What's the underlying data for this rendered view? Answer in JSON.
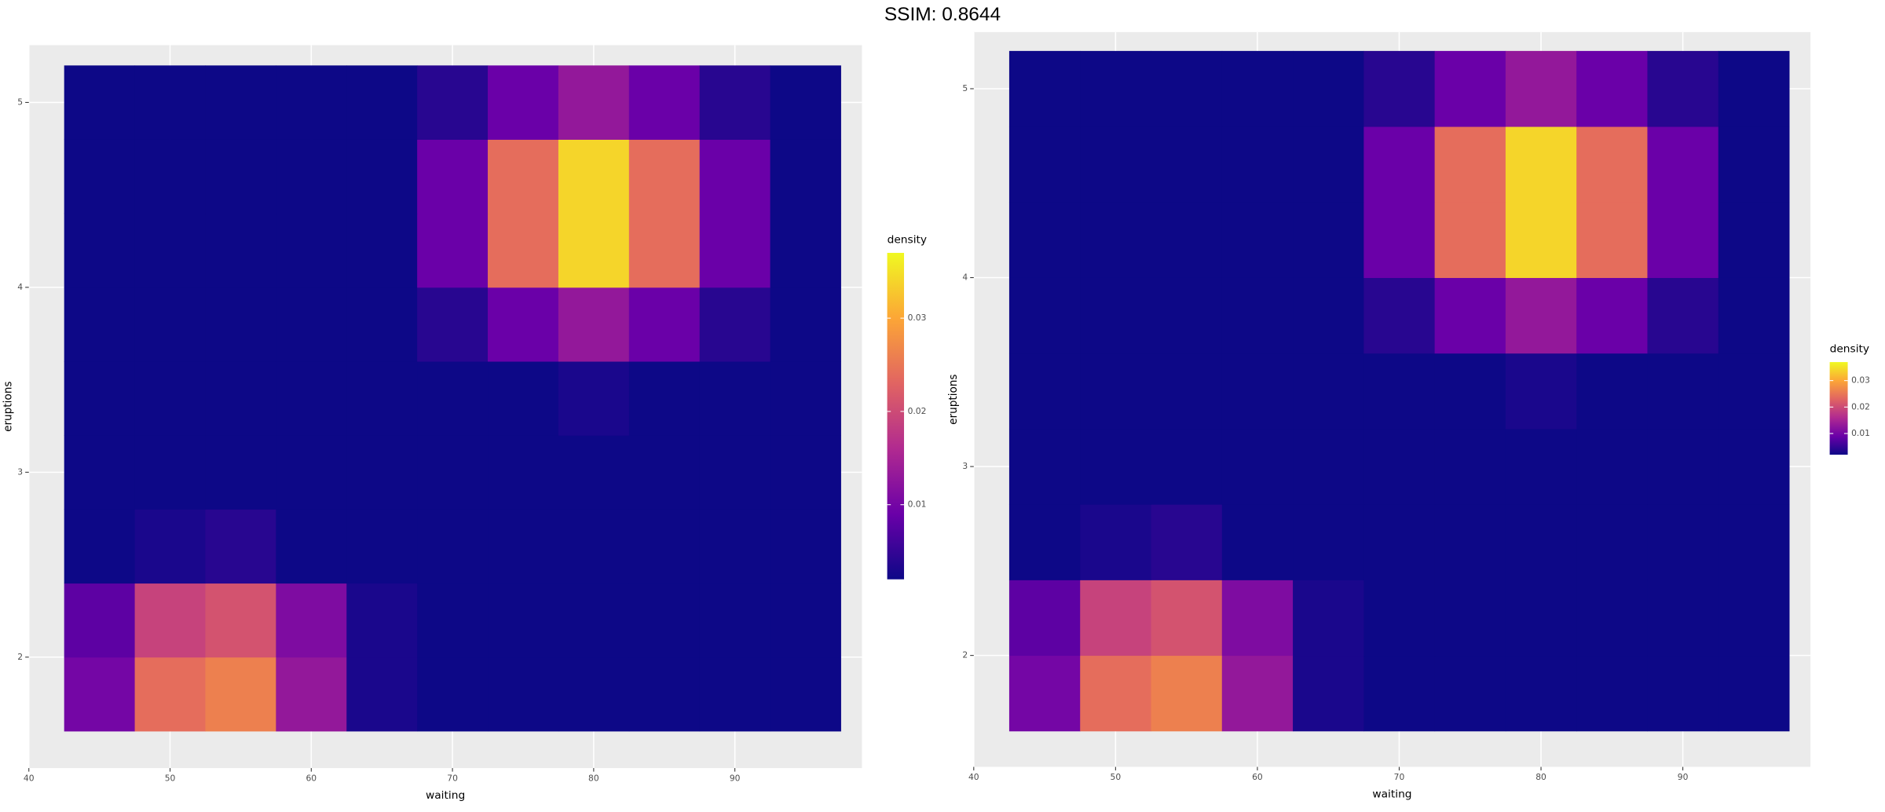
{
  "title": "SSIM: 0.8644",
  "chart_data": [
    {
      "type": "heatmap",
      "x_label": "waiting",
      "y_label": "eruptions",
      "legend_title": "density",
      "x": [
        45,
        50,
        55,
        60,
        65,
        70,
        75,
        80,
        85,
        90,
        95
      ],
      "y": [
        1.8,
        2.2,
        2.6,
        3.0,
        3.4,
        3.8,
        4.2,
        4.6,
        5.0
      ],
      "z": [
        [
          0.01,
          0.024,
          0.026,
          0.013,
          0.003,
          0.001,
          0.001,
          0.001,
          0.001,
          0.001,
          0.001
        ],
        [
          0.008,
          0.019,
          0.021,
          0.011,
          0.003,
          0.001,
          0.001,
          0.001,
          0.001,
          0.001,
          0.001
        ],
        [
          0.002,
          0.003,
          0.004,
          0.002,
          0.001,
          0.001,
          0.001,
          0.001,
          0.001,
          0.001,
          0.001
        ],
        [
          0.001,
          0.001,
          0.001,
          0.001,
          0.001,
          0.001,
          0.001,
          0.001,
          0.001,
          0.001,
          0.001
        ],
        [
          0.001,
          0.001,
          0.001,
          0.001,
          0.001,
          0.001,
          0.002,
          0.003,
          0.002,
          0.001,
          0.001
        ],
        [
          0.001,
          0.001,
          0.001,
          0.001,
          0.002,
          0.004,
          0.009,
          0.013,
          0.009,
          0.004,
          0.002
        ],
        [
          0.001,
          0.001,
          0.001,
          0.001,
          0.002,
          0.009,
          0.024,
          0.034,
          0.024,
          0.009,
          0.002
        ],
        [
          0.001,
          0.001,
          0.001,
          0.001,
          0.002,
          0.009,
          0.024,
          0.034,
          0.024,
          0.009,
          0.002
        ],
        [
          0.001,
          0.001,
          0.001,
          0.001,
          0.002,
          0.004,
          0.009,
          0.013,
          0.009,
          0.004,
          0.002
        ]
      ],
      "xlim": [
        40,
        99
      ],
      "ylim": [
        1.4,
        5.31
      ],
      "xticks": [
        40,
        50,
        60,
        70,
        80,
        90
      ],
      "yticks": [
        2,
        3,
        4,
        5
      ],
      "zlim": [
        0.002,
        0.037
      ],
      "zticks": [
        0.01,
        0.02,
        0.03
      ],
      "colors": [
        "#0d0887",
        "#6a00a8",
        "#b12a90",
        "#e16462",
        "#fca636",
        "#f0f921"
      ],
      "grid": true
    },
    {
      "type": "heatmap",
      "x_label": "waiting",
      "y_label": "eruptions",
      "legend_title": "density",
      "x": [
        45,
        50,
        55,
        60,
        65,
        70,
        75,
        80,
        85,
        90,
        95
      ],
      "y": [
        1.8,
        2.2,
        2.6,
        3.0,
        3.4,
        3.8,
        4.2,
        4.6,
        5.0
      ],
      "z": [
        [
          0.01,
          0.024,
          0.026,
          0.013,
          0.003,
          0.001,
          0.001,
          0.001,
          0.001,
          0.001,
          0.001
        ],
        [
          0.008,
          0.019,
          0.021,
          0.011,
          0.003,
          0.001,
          0.001,
          0.001,
          0.001,
          0.001,
          0.001
        ],
        [
          0.002,
          0.003,
          0.004,
          0.002,
          0.001,
          0.001,
          0.001,
          0.001,
          0.001,
          0.001,
          0.001
        ],
        [
          0.001,
          0.001,
          0.001,
          0.001,
          0.001,
          0.001,
          0.001,
          0.001,
          0.001,
          0.001,
          0.001
        ],
        [
          0.001,
          0.001,
          0.001,
          0.001,
          0.001,
          0.001,
          0.002,
          0.003,
          0.002,
          0.001,
          0.001
        ],
        [
          0.001,
          0.001,
          0.001,
          0.001,
          0.002,
          0.004,
          0.009,
          0.013,
          0.009,
          0.004,
          0.002
        ],
        [
          0.001,
          0.001,
          0.001,
          0.001,
          0.002,
          0.009,
          0.024,
          0.034,
          0.024,
          0.009,
          0.002
        ],
        [
          0.001,
          0.001,
          0.001,
          0.001,
          0.002,
          0.009,
          0.024,
          0.034,
          0.024,
          0.009,
          0.002
        ],
        [
          0.001,
          0.001,
          0.001,
          0.001,
          0.002,
          0.004,
          0.009,
          0.013,
          0.009,
          0.004,
          0.002
        ]
      ],
      "xlim": [
        40,
        99
      ],
      "ylim": [
        1.41,
        5.3
      ],
      "xticks": [
        40,
        50,
        60,
        70,
        80,
        90
      ],
      "yticks": [
        2,
        3,
        4,
        5
      ],
      "zlim": [
        0.002,
        0.037
      ],
      "zticks": [
        0.01,
        0.02,
        0.03
      ],
      "colors": [
        "#0d0887",
        "#6a00a8",
        "#b12a90",
        "#e16462",
        "#fca636",
        "#f0f921"
      ],
      "grid": true
    }
  ]
}
